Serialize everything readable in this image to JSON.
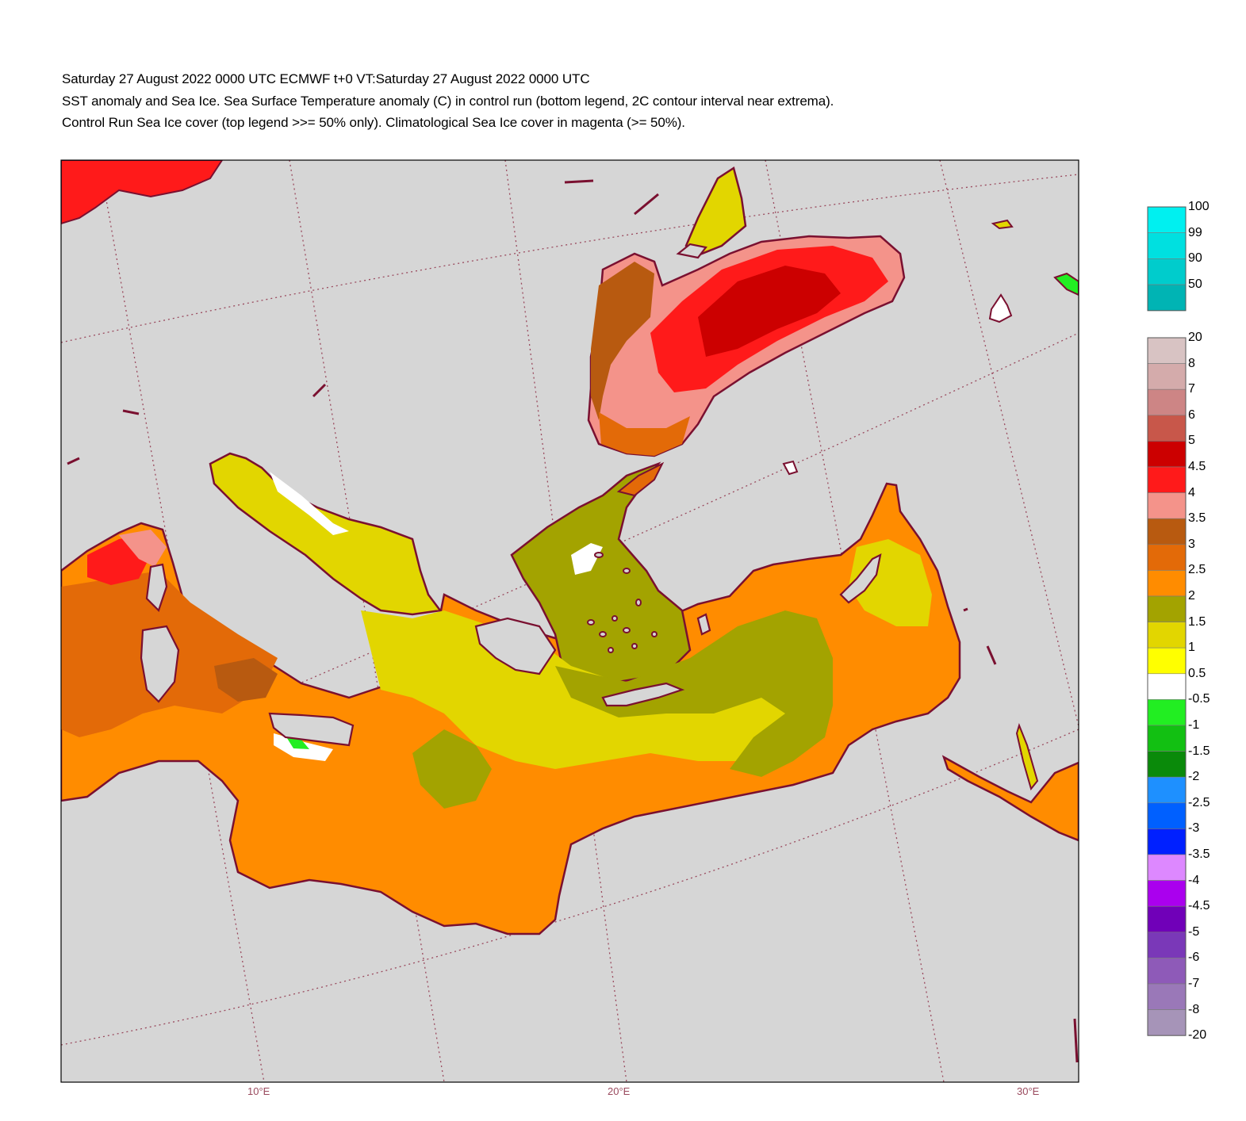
{
  "header": {
    "line1": "Saturday 27 August 2022 0000 UTC  ECMWF  t+0  VT:Saturday 27 August 2022 0000 UTC",
    "line2": "SST anomaly and Sea Ice. Sea Surface Temperature anomaly (C) in control run (bottom legend, 2C contour interval near extrema).",
    "line3": "Control Run Sea Ice cover (top legend >>= 50% only). Climatological Sea Ice cover in magenta (>= 50%)."
  },
  "map": {
    "background_color": "#d6d6d6",
    "coastline_color": "#7a1030",
    "graticule_color": "#9a4a5e",
    "longitude_labels": [
      "10°E",
      "20°E",
      "30°E"
    ]
  },
  "legends": {
    "ice_cover": {
      "labels": [
        "100",
        "99",
        "90",
        "50"
      ],
      "colors": [
        "#00f0f0",
        "#00e0e0",
        "#00cccc",
        "#00b4b4"
      ]
    },
    "sst_anomaly": {
      "labels": [
        "20",
        "8",
        "7",
        "6",
        "5",
        "4.5",
        "4",
        "3.5",
        "3",
        "2.5",
        "2",
        "1.5",
        "1",
        "0.5",
        "-0.5",
        "-1",
        "-1.5",
        "-2",
        "-2.5",
        "-3",
        "-3.5",
        "-4",
        "-4.5",
        "-5",
        "-6",
        "-7",
        "-8",
        "-20"
      ],
      "colors": [
        "#d8c3c3",
        "#d4abab",
        "#cd8585",
        "#c8574a",
        "#cc0000",
        "#ff1a1a",
        "#f4938a",
        "#b85a10",
        "#e36a08",
        "#ff8c00",
        "#a3a300",
        "#e2d600",
        "#ffff00",
        "#ffffff",
        "#22ee22",
        "#12c012",
        "#0a8a0a",
        "#1e90ff",
        "#0060ff",
        "#0020ff",
        "#dd88ff",
        "#aa00ee",
        "#7000b8",
        "#7a38b8",
        "#8e5ab8",
        "#9a78b8",
        "#a694b8"
      ]
    }
  }
}
